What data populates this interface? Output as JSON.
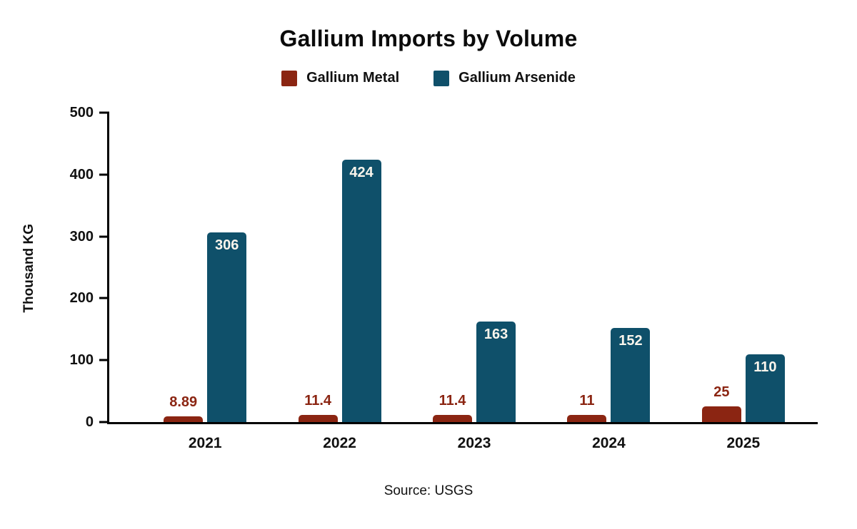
{
  "chart_data": {
    "type": "bar",
    "title": "Gallium Imports by Volume",
    "categories": [
      "2021",
      "2022",
      "2023",
      "2024",
      "2025"
    ],
    "series": [
      {
        "name": "Gallium Metal",
        "color": "#8b2512",
        "label_color": "#8b2512",
        "label_position": "above",
        "values": [
          8.89,
          11.4,
          11.4,
          11,
          25
        ],
        "labels": [
          "8.89",
          "11.4",
          "11.4",
          "11",
          "25"
        ]
      },
      {
        "name": "Gallium Arsenide",
        "color": "#0f506a",
        "label_color": "#faf5ec",
        "label_position": "inside-top",
        "values": [
          306,
          424,
          163,
          152,
          110
        ],
        "labels": [
          "306",
          "424",
          "163",
          "152",
          "110"
        ]
      }
    ],
    "xlabel": "",
    "ylabel": "Thousand KG",
    "ylim": [
      0,
      500
    ],
    "yticks": [
      0,
      100,
      200,
      300,
      400,
      500
    ],
    "grid": false,
    "legend_position": "top",
    "axis_color": "#000000",
    "source": "Source: USGS"
  }
}
